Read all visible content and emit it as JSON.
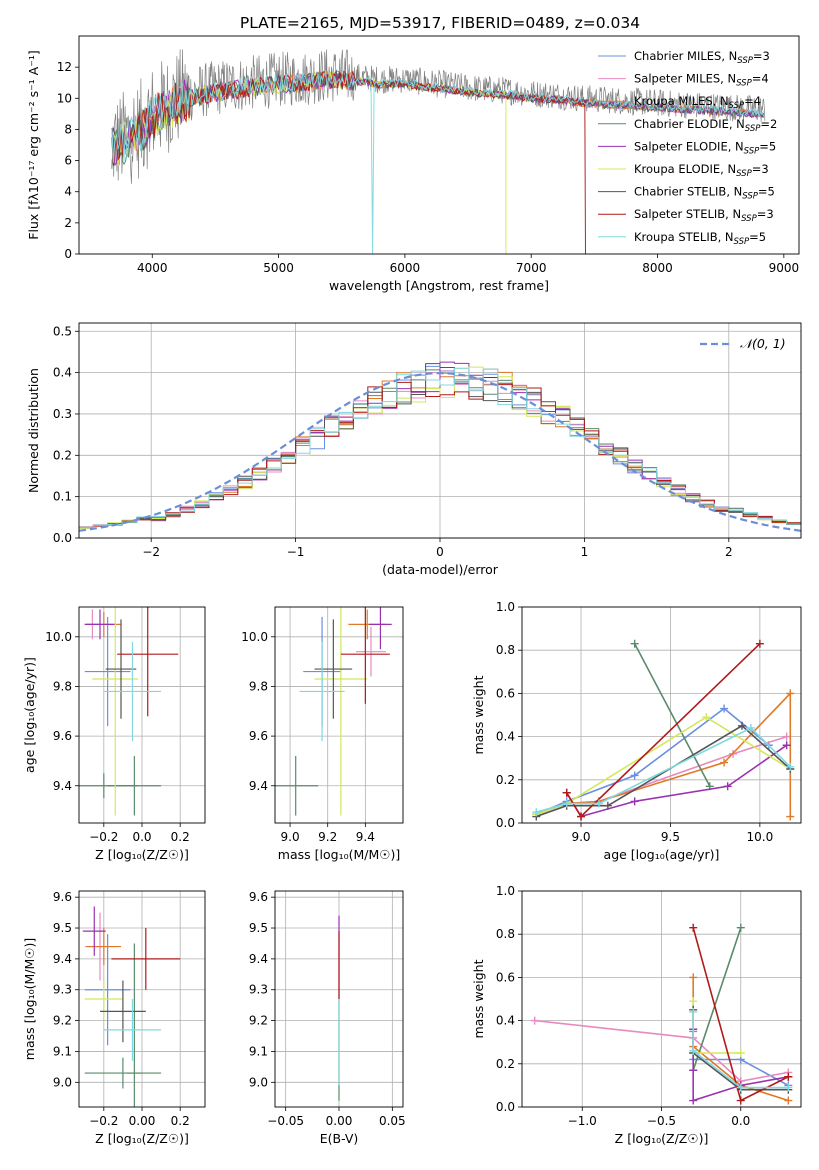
{
  "figure": {
    "title": "PLATE=2165, MJD=53917, FIBERID=0489, z=0.034"
  },
  "colors": {
    "chabrier_miles": "#6a8fe0",
    "salpeter_miles": "#e88ac0",
    "kroupa_miles": "#e07a28",
    "chabrier_elodie": "#5a8a6a",
    "salpeter_elodie": "#9a32b0",
    "kroupa_elodie": "#d4e85a",
    "chabrier_stelib": "#555555",
    "salpeter_stelib": "#b01a1a",
    "kroupa_stelib": "#80d8e0",
    "normal": "#6a8fd8"
  },
  "chart_data": [
    {
      "id": "spectrum",
      "type": "line",
      "title": "PLATE=2165, MJD=53917, FIBERID=0489, z=0.034",
      "xlabel": "wavelength [Angstrom, rest frame]",
      "ylabel": "Flux [fλ10⁻¹⁷ erg cm⁻² s⁻¹ A⁻¹]",
      "xlim": [
        3420,
        9120
      ],
      "ylim": [
        0,
        14
      ],
      "xticks": [
        "4000",
        "5000",
        "6000",
        "7000",
        "8000",
        "9000"
      ],
      "xtick_values": [
        4000,
        5000,
        6000,
        7000,
        8000,
        9000
      ],
      "yticks": [
        "0",
        "2",
        "4",
        "6",
        "8",
        "10",
        "12"
      ],
      "ytick_values": [
        0,
        2,
        4,
        6,
        8,
        10,
        12
      ],
      "legend_position": "top-right",
      "series": [
        {
          "name": "Chabrier MILES, N_SSP=3",
          "name_main": "Chabrier MILES, N",
          "name_sub": "SSP",
          "name_tail": "=3",
          "color": "#6a8fe0"
        },
        {
          "name": "Salpeter MILES, N_SSP=4",
          "name_main": "Salpeter MILES, N",
          "name_sub": "SSP",
          "name_tail": "=4",
          "color": "#e88ac0"
        },
        {
          "name": "Kroupa MILES, N_SSP=4",
          "name_main": "Kroupa MILES, N",
          "name_sub": "SSP",
          "name_tail": "=4",
          "color": "#e07a28"
        },
        {
          "name": "Chabrier ELODIE, N_SSP=2",
          "name_main": "Chabrier ELODIE, N",
          "name_sub": "SSP",
          "name_tail": "=2",
          "color": "#5a8a6a"
        },
        {
          "name": "Salpeter ELODIE, N_SSP=5",
          "name_main": "Salpeter ELODIE, N",
          "name_sub": "SSP",
          "name_tail": "=5",
          "color": "#9a32b0"
        },
        {
          "name": "Kroupa ELODIE, N_SSP=3",
          "name_main": "Kroupa ELODIE, N",
          "name_sub": "SSP",
          "name_tail": "=3",
          "color": "#d4e85a"
        },
        {
          "name": "Chabrier STELIB, N_SSP=5",
          "name_main": "Chabrier STELIB, N",
          "name_sub": "SSP",
          "name_tail": "=5",
          "color": "#555555"
        },
        {
          "name": "Salpeter STELIB, N_SSP=3",
          "name_main": "Salpeter STELIB, N",
          "name_sub": "SSP",
          "name_tail": "=3",
          "color": "#b01a1a"
        },
        {
          "name": "Kroupa STELIB, N_SSP=5",
          "name_main": "Kroupa STELIB, N",
          "name_sub": "SSP",
          "name_tail": "=5",
          "color": "#80d8e0"
        }
      ],
      "spectrum_profile": {
        "x": [
          3680,
          3800,
          3900,
          4000,
          4100,
          4200,
          4400,
          4600,
          4800,
          5000,
          5200,
          5400,
          5600,
          5800,
          6000,
          6200,
          6400,
          6600,
          6800,
          7000,
          7200,
          7400,
          7600,
          7800,
          8000,
          8200,
          8400,
          8600,
          8800
        ],
        "y": [
          7.0,
          7.5,
          8.0,
          9.0,
          9.5,
          10.0,
          10.5,
          10.8,
          11.0,
          11.2,
          11.3,
          11.5,
          11.4,
          11.2,
          11.2,
          11.0,
          10.8,
          10.6,
          10.5,
          10.3,
          10.2,
          10.0,
          9.9,
          9.8,
          9.7,
          9.6,
          9.5,
          9.4,
          9.3
        ]
      }
    },
    {
      "id": "residuals",
      "type": "histogram",
      "xlabel": "(data-model)/error",
      "ylabel": "Normed distribution",
      "xlim": [
        -2.5,
        2.5
      ],
      "ylim": [
        0,
        0.52
      ],
      "xticks": [
        "−2",
        "−1",
        "0",
        "1",
        "2"
      ],
      "xtick_values": [
        -2,
        -1,
        0,
        1,
        2
      ],
      "yticks": [
        "0.0",
        "0.1",
        "0.2",
        "0.3",
        "0.4",
        "0.5"
      ],
      "ytick_values": [
        0,
        0.1,
        0.2,
        0.3,
        0.4,
        0.5
      ],
      "grid": true,
      "legend": "𝒩(0, 1)",
      "legend_position": "top-right",
      "bin_width": 0.1
    },
    {
      "id": "age_vs_Z",
      "type": "errorbar",
      "xlabel": "Z [log₁₀(Z/Z☉)]",
      "ylabel": "age  [log₁₀(age/yr)]",
      "xlim": [
        -0.33,
        0.33
      ],
      "ylim": [
        9.25,
        10.12
      ],
      "xticks": [
        "−0.2",
        "0.0",
        "0.2"
      ],
      "xtick_values": [
        -0.2,
        0.0,
        0.2
      ],
      "yticks": [
        "9.4",
        "9.6",
        "9.8",
        "10.0"
      ],
      "ytick_values": [
        9.4,
        9.6,
        9.8,
        10.0
      ],
      "grid": true,
      "points": [
        {
          "series": 0,
          "x": -0.18,
          "y": 9.86,
          "xerr": 0.12,
          "yerr": 0.22
        },
        {
          "series": 1,
          "x": -0.26,
          "y": 10.05,
          "xerr": 0.04,
          "yerr": 0.06
        },
        {
          "series": 2,
          "x": -0.2,
          "y": 10.05,
          "xerr": 0.09,
          "yerr": 0.05
        },
        {
          "series": 3,
          "x": -0.2,
          "y": 9.4,
          "xerr": 0.18,
          "yerr": 0.05
        },
        {
          "series": 3,
          "x": -0.04,
          "y": 9.4,
          "xerr": 0.14,
          "yerr": 0.12
        },
        {
          "series": 4,
          "x": -0.22,
          "y": 10.05,
          "xerr": 0.08,
          "yerr": 0.06
        },
        {
          "series": 5,
          "x": -0.14,
          "y": 9.83,
          "xerr": 0.12,
          "yerr": 0.55
        },
        {
          "series": 6,
          "x": -0.11,
          "y": 9.87,
          "xerr": 0.08,
          "yerr": 0.2
        },
        {
          "series": 7,
          "x": 0.03,
          "y": 9.93,
          "xerr": 0.16,
          "yerr": 0.25
        },
        {
          "series": 8,
          "x": -0.05,
          "y": 9.78,
          "xerr": 0.15,
          "yerr": 0.2
        }
      ]
    },
    {
      "id": "age_vs_mass",
      "type": "errorbar",
      "xlabel": "mass [log₁₀(M/M☉)]",
      "ylabel": "",
      "xlim": [
        8.92,
        9.6
      ],
      "ylim": [
        9.25,
        10.12
      ],
      "xticks": [
        "9.0",
        "9.2",
        "9.4"
      ],
      "xtick_values": [
        9.0,
        9.2,
        9.4
      ],
      "yticks": [
        "9.4",
        "9.6",
        "9.8",
        "10.0"
      ],
      "ytick_values": [
        9.4,
        9.6,
        9.8,
        10.0
      ],
      "grid": true,
      "points": [
        {
          "series": 0,
          "x": 9.17,
          "y": 9.86,
          "xerr": 0.1,
          "yerr": 0.22
        },
        {
          "series": 1,
          "x": 9.43,
          "y": 9.94,
          "xerr": 0.08,
          "yerr": 0.1
        },
        {
          "series": 2,
          "x": 9.41,
          "y": 10.05,
          "xerr": 0.1,
          "yerr": 0.06
        },
        {
          "series": 3,
          "x": 9.03,
          "y": 9.4,
          "xerr": 0.12,
          "yerr": 0.12
        },
        {
          "series": 4,
          "x": 9.48,
          "y": 10.05,
          "xerr": 0.06,
          "yerr": 0.1
        },
        {
          "series": 5,
          "x": 9.27,
          "y": 9.83,
          "xerr": 0.14,
          "yerr": 0.55
        },
        {
          "series": 6,
          "x": 9.23,
          "y": 9.87,
          "xerr": 0.1,
          "yerr": 0.2
        },
        {
          "series": 7,
          "x": 9.4,
          "y": 9.93,
          "xerr": 0.13,
          "yerr": 0.2
        },
        {
          "series": 8,
          "x": 9.17,
          "y": 9.78,
          "xerr": 0.12,
          "yerr": 0.2
        }
      ]
    },
    {
      "id": "weight_vs_age",
      "type": "line",
      "xlabel": "age  [log₁₀(age/yr)]",
      "ylabel": "mass weight",
      "xlim": [
        8.67,
        10.23
      ],
      "ylim": [
        0,
        1.0
      ],
      "xticks": [
        "9.0",
        "9.5",
        "10.0"
      ],
      "xtick_values": [
        9.0,
        9.5,
        10.0
      ],
      "yticks": [
        "0.0",
        "0.2",
        "0.4",
        "0.6",
        "0.8",
        "1.0"
      ],
      "ytick_values": [
        0,
        0.2,
        0.4,
        0.6,
        0.8,
        1.0
      ],
      "grid": true,
      "series": [
        {
          "series": 0,
          "x": [
            8.75,
            8.92,
            9.3,
            9.8,
            10.05
          ],
          "y": [
            0.04,
            0.1,
            0.22,
            0.53,
            0.36
          ]
        },
        {
          "series": 1,
          "x": [
            8.75,
            8.92,
            9.1,
            9.85,
            10.15
          ],
          "y": [
            0.04,
            0.09,
            0.1,
            0.32,
            0.4
          ]
        },
        {
          "series": 2,
          "x": [
            8.75,
            8.92,
            9.1,
            9.8,
            10.17,
            10.17
          ],
          "y": [
            0.04,
            0.09,
            0.1,
            0.28,
            0.6,
            0.03
          ]
        },
        {
          "series": 3,
          "x": [
            9.3,
            9.72
          ],
          "y": [
            0.83,
            0.17
          ]
        },
        {
          "series": 4,
          "x": [
            8.92,
            9.0,
            9.3,
            9.82,
            10.15
          ],
          "y": [
            0.14,
            0.03,
            0.1,
            0.17,
            0.36
          ]
        },
        {
          "series": 5,
          "x": [
            8.75,
            8.92,
            9.7,
            10.17
          ],
          "y": [
            0.04,
            0.09,
            0.49,
            0.25
          ]
        },
        {
          "series": 6,
          "x": [
            8.75,
            8.92,
            9.15,
            9.9,
            10.17
          ],
          "y": [
            0.03,
            0.08,
            0.08,
            0.45,
            0.25
          ]
        },
        {
          "series": 7,
          "x": [
            8.92,
            9.0,
            10.0
          ],
          "y": [
            0.14,
            0.03,
            0.83
          ]
        },
        {
          "series": 8,
          "x": [
            8.75,
            8.92,
            9.1,
            9.95,
            10.17
          ],
          "y": [
            0.05,
            0.09,
            0.09,
            0.44,
            0.26
          ]
        }
      ]
    },
    {
      "id": "mass_vs_Z",
      "type": "errorbar",
      "xlabel": "Z [log₁₀(Z/Z☉)]",
      "ylabel": "mass [log₁₀(M/M☉)]",
      "xlim": [
        -0.33,
        0.33
      ],
      "ylim": [
        8.92,
        9.62
      ],
      "xticks": [
        "−0.2",
        "0.00",
        "0.2"
      ],
      "xtick_values": [
        -0.2,
        0.0,
        0.2
      ],
      "yticks": [
        "9.0",
        "9.1",
        "9.2",
        "9.3",
        "9.4",
        "9.5",
        "9.6"
      ],
      "ytick_values": [
        9.0,
        9.1,
        9.2,
        9.3,
        9.4,
        9.5,
        9.6
      ],
      "grid": true,
      "points": [
        {
          "series": 0,
          "x": -0.18,
          "y": 9.3,
          "xerr": 0.12,
          "yerr": 0.18
        },
        {
          "series": 1,
          "x": -0.22,
          "y": 9.44,
          "xerr": 0.08,
          "yerr": 0.11
        },
        {
          "series": 2,
          "x": -0.2,
          "y": 9.44,
          "xerr": 0.09,
          "yerr": 0.06
        },
        {
          "series": 3,
          "x": -0.1,
          "y": 9.03,
          "xerr": 0.2,
          "yerr": 0.05
        },
        {
          "series": 3,
          "x": -0.04,
          "y": 9.03,
          "xerr": 0.04,
          "yerr": 0.42
        },
        {
          "series": 4,
          "x": -0.25,
          "y": 9.49,
          "xerr": 0.06,
          "yerr": 0.08
        },
        {
          "series": 5,
          "x": -0.2,
          "y": 9.27,
          "xerr": 0.1,
          "yerr": 0.06
        },
        {
          "series": 6,
          "x": -0.1,
          "y": 9.23,
          "xerr": 0.12,
          "yerr": 0.1
        },
        {
          "series": 7,
          "x": 0.02,
          "y": 9.4,
          "xerr": 0.18,
          "yerr": 0.1
        },
        {
          "series": 8,
          "x": -0.05,
          "y": 9.17,
          "xerr": 0.15,
          "yerr": 0.1
        }
      ]
    },
    {
      "id": "mass_vs_ebv",
      "type": "errorbar",
      "xlabel": "E(B-V)",
      "ylabel": "",
      "xlim": [
        -0.06,
        0.06
      ],
      "ylim": [
        8.92,
        9.62
      ],
      "xticks": [
        "−0.05",
        "0.00",
        "0.05"
      ],
      "xtick_values": [
        -0.05,
        0.0,
        0.05
      ],
      "yticks": [
        "9.0",
        "9.1",
        "9.2",
        "9.3",
        "9.4",
        "9.5",
        "9.6"
      ],
      "ytick_values": [
        9.0,
        9.1,
        9.2,
        9.3,
        9.4,
        9.5,
        9.6
      ],
      "grid": true,
      "points": [
        {
          "series": 4,
          "x": 0.0,
          "y": 9.42,
          "xerr": 0.0,
          "yerr": 0.12
        },
        {
          "series": 3,
          "x": 0.0,
          "y": 9.12,
          "xerr": 0.0,
          "yerr": 0.18
        },
        {
          "series": 7,
          "x": 0.0,
          "y": 9.38,
          "xerr": 0.0,
          "yerr": 0.11
        },
        {
          "series": 8,
          "x": 0.0,
          "y": 9.13,
          "xerr": 0.0,
          "yerr": 0.14
        }
      ]
    },
    {
      "id": "weight_vs_Z",
      "type": "line",
      "xlabel": "Z [log₁₀(Z/Z☉)]",
      "ylabel": "mass weight",
      "xlim": [
        -1.38,
        0.38
      ],
      "ylim": [
        0,
        1.0
      ],
      "xticks": [
        "−1.0",
        "−0.5",
        "0.0"
      ],
      "xtick_values": [
        -1.0,
        -0.5,
        0.0
      ],
      "yticks": [
        "0.0",
        "0.2",
        "0.4",
        "0.6",
        "0.8",
        "1.0"
      ],
      "ytick_values": [
        0,
        0.2,
        0.4,
        0.6,
        0.8,
        1.0
      ],
      "grid": true,
      "series": [
        {
          "series": 0,
          "x": [
            -0.3,
            -0.3,
            0.0,
            0.3
          ],
          "y": [
            0.35,
            0.22,
            0.22,
            0.1
          ]
        },
        {
          "series": 1,
          "x": [
            -1.3,
            -0.3,
            0.0,
            0.3
          ],
          "y": [
            0.4,
            0.32,
            0.12,
            0.16
          ]
        },
        {
          "series": 2,
          "x": [
            -0.3,
            -0.3,
            0.0,
            0.3
          ],
          "y": [
            0.6,
            0.28,
            0.1,
            0.03
          ]
        },
        {
          "series": 3,
          "x": [
            -0.3,
            0.0
          ],
          "y": [
            0.17,
            0.83
          ]
        },
        {
          "series": 4,
          "x": [
            -0.3,
            -0.3,
            -0.3,
            0.0,
            0.3
          ],
          "y": [
            0.36,
            0.17,
            0.03,
            0.1,
            0.14
          ]
        },
        {
          "series": 5,
          "x": [
            -0.3,
            -0.3,
            0.0
          ],
          "y": [
            0.49,
            0.25,
            0.25
          ]
        },
        {
          "series": 6,
          "x": [
            -0.3,
            -0.3,
            0.0,
            0.3
          ],
          "y": [
            0.45,
            0.25,
            0.08,
            0.08
          ]
        },
        {
          "series": 7,
          "x": [
            -0.3,
            0.0,
            0.3
          ],
          "y": [
            0.83,
            0.03,
            0.14
          ]
        },
        {
          "series": 8,
          "x": [
            -0.3,
            -0.3,
            0.0,
            0.3
          ],
          "y": [
            0.44,
            0.26,
            0.09,
            0.09
          ]
        }
      ]
    }
  ]
}
